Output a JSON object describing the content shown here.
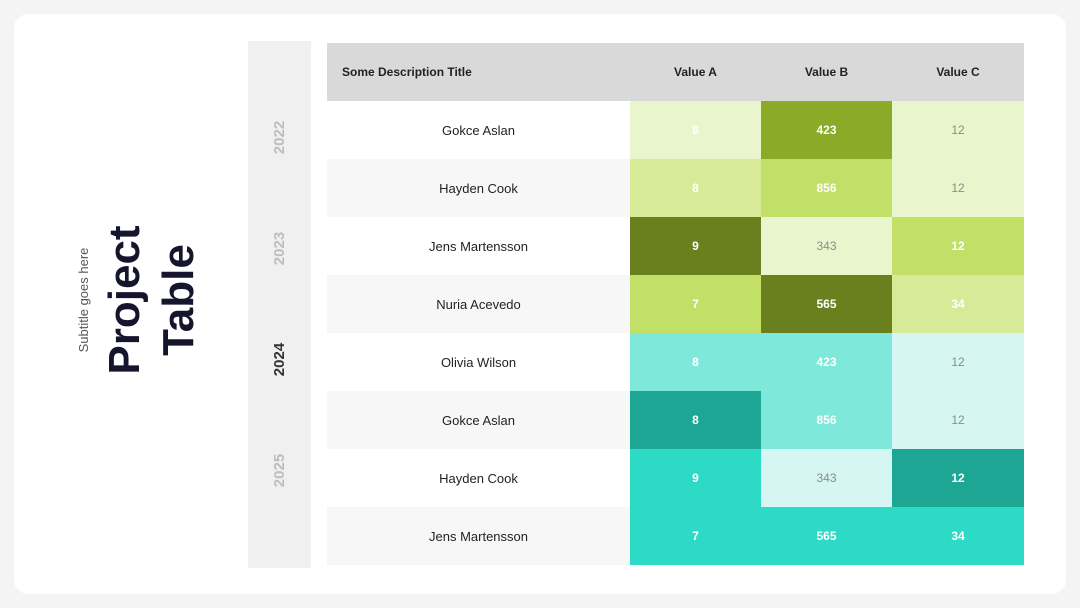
{
  "title": "Project Table",
  "title_lines": [
    "Project",
    "Table"
  ],
  "subtitle": "Subtitle goes here",
  "years": [
    {
      "label": "2022",
      "active": false
    },
    {
      "label": "2023",
      "active": false
    },
    {
      "label": "2024",
      "active": true
    },
    {
      "label": "2025",
      "active": false
    }
  ],
  "table": {
    "headers": [
      "Some Description Title",
      "Value A",
      "Value B",
      "Value C"
    ],
    "rows": [
      {
        "name": "Gokce Aslan",
        "a": "8",
        "b": "423",
        "c": "12",
        "colors": [
          [
            "#e9f5cd",
            "#ffffff"
          ],
          [
            "#8aaa28",
            "#ffffff"
          ],
          [
            "#e9f5cd",
            "#8c8c8c"
          ]
        ]
      },
      {
        "name": "Hayden Cook",
        "a": "8",
        "b": "856",
        "c": "12",
        "colors": [
          [
            "#d6ea98",
            "#ffffff"
          ],
          [
            "#c2df67",
            "#ffffff"
          ],
          [
            "#e9f5cd",
            "#8c8c8c"
          ]
        ]
      },
      {
        "name": "Jens Martensson",
        "a": "9",
        "b": "343",
        "c": "12",
        "colors": [
          [
            "#6a7f1e",
            "#ffffff"
          ],
          [
            "#e9f5cd",
            "#8c8c8c"
          ],
          [
            "#c2df67",
            "#ffffff"
          ]
        ]
      },
      {
        "name": "Nuria Acevedo",
        "a": "7",
        "b": "565",
        "c": "34",
        "colors": [
          [
            "#c2df67",
            "#ffffff"
          ],
          [
            "#6a7f1e",
            "#ffffff"
          ],
          [
            "#d6ea98",
            "#ffffff"
          ]
        ]
      },
      {
        "name": "Olivia Wilson",
        "a": "8",
        "b": "423",
        "c": "12",
        "colors": [
          [
            "#7ee8da",
            "#ffffff"
          ],
          [
            "#7ee8da",
            "#ffffff"
          ],
          [
            "#d5f6f2",
            "#8c8c8c"
          ]
        ]
      },
      {
        "name": "Gokce Aslan",
        "a": "8",
        "b": "856",
        "c": "12",
        "colors": [
          [
            "#1ea695",
            "#ffffff"
          ],
          [
            "#7ee8da",
            "#ffffff"
          ],
          [
            "#d5f6f2",
            "#8c8c8c"
          ]
        ]
      },
      {
        "name": "Hayden Cook",
        "a": "9",
        "b": "343",
        "c": "12",
        "colors": [
          [
            "#2ddac5",
            "#ffffff"
          ],
          [
            "#d5f6f2",
            "#8c8c8c"
          ],
          [
            "#1ea695",
            "#ffffff"
          ]
        ]
      },
      {
        "name": "Jens Martensson",
        "a": "7",
        "b": "565",
        "c": "34",
        "colors": [
          [
            "#2ddac5",
            "#ffffff"
          ],
          [
            "#2ddac5",
            "#ffffff"
          ],
          [
            "#2ddac5",
            "#ffffff"
          ]
        ]
      }
    ]
  }
}
